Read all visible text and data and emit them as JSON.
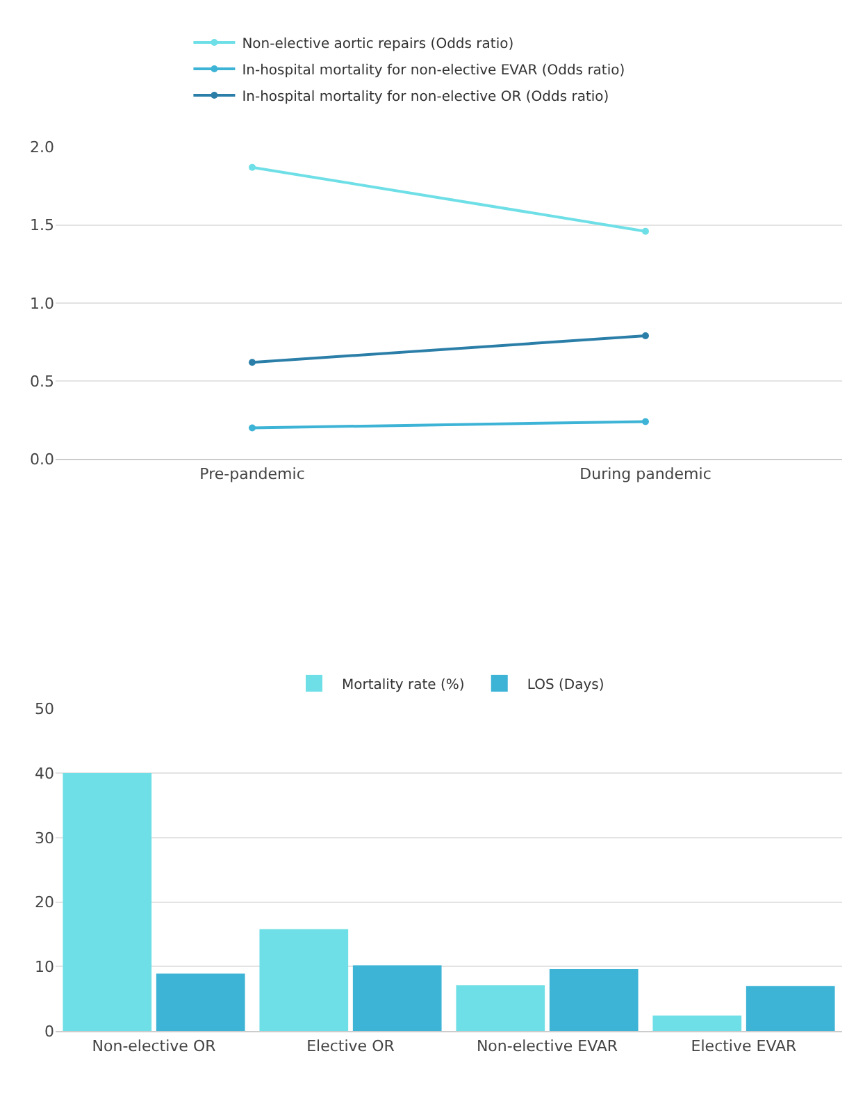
{
  "chart_data": [
    {
      "type": "line",
      "categories": [
        "Pre-pandemic",
        "During pandemic"
      ],
      "series": [
        {
          "name": "Non-elective aortic repairs (Odds ratio)",
          "color": "#6edfe6",
          "values": [
            1.87,
            1.46
          ]
        },
        {
          "name": "In-hospital mortality for non-elective EVAR (Odds ratio)",
          "color": "#3db3d6",
          "values": [
            0.2,
            0.24
          ]
        },
        {
          "name": "In-hospital mortality for non-elective OR (Odds ratio)",
          "color": "#2a7ea8",
          "values": [
            0.62,
            0.79
          ]
        }
      ],
      "ylim": [
        0,
        2.0
      ],
      "yticks": [
        {
          "value": 0,
          "label": "0.0"
        },
        {
          "value": 0.5,
          "label": "0.5"
        },
        {
          "value": 1.0,
          "label": "1.0"
        },
        {
          "value": 1.5,
          "label": "1.5"
        },
        {
          "value": 2.0,
          "label": "2.0"
        }
      ],
      "grid": "y",
      "legend": "top",
      "marker": "circle",
      "line_style": "solid"
    },
    {
      "type": "bar",
      "categories": [
        "Non-elective OR",
        "Elective OR",
        "Non-elective EVAR",
        "Elective EVAR"
      ],
      "series": [
        {
          "name": "Mortality rate (%)",
          "color": "#6edfe6",
          "values": [
            40,
            15.8,
            7.1,
            2.4
          ]
        },
        {
          "name": "LOS (Days)",
          "color": "#3db3d6",
          "values": [
            8.9,
            10.2,
            9.6,
            7.0
          ]
        }
      ],
      "ylim": [
        0,
        50
      ],
      "yticks": [
        0,
        10,
        20,
        30,
        40,
        50
      ],
      "grid": "y",
      "legend": "top"
    }
  ]
}
